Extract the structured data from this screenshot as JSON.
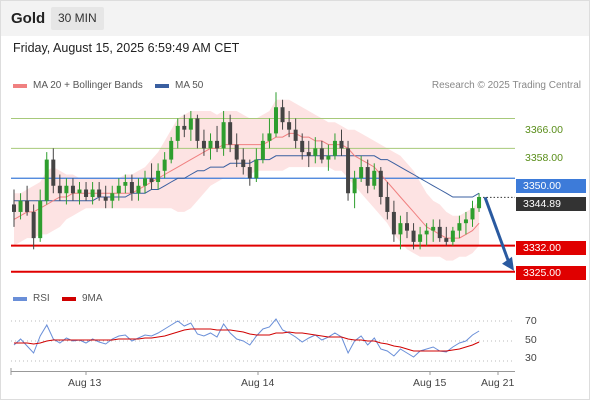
{
  "header": {
    "instrument": "Gold",
    "timeframe": "30 MIN",
    "datetime": "Friday, August 15, 2025 6:59:49 AM CET"
  },
  "legend": {
    "ma20": "MA 20 + Bollinger Bands",
    "ma50": "MA 50",
    "credit": "Research © 2025 Trading Central",
    "rsi": "RSI",
    "rsi_ma": "9MA"
  },
  "colors": {
    "bull": "#2e9e2e",
    "bear": "#444444",
    "ma20": "#f08080",
    "ma50": "#3a5fa0",
    "bands_fill": "#fde3e3",
    "level_red": "#e00000",
    "level_green": "#a7c97a",
    "level_blue": "#3d7bd9",
    "arrow": "#2a5aa0",
    "rsi": "#6a8fd8",
    "rsi_ma": "#d00000"
  },
  "chart_data": [
    {
      "type": "candlestick",
      "title": "Gold",
      "x_ticks": [
        "Aug 13",
        "Aug 14",
        "Aug 15",
        "Aug 21"
      ],
      "ylim": [
        3322,
        3372
      ],
      "levels": [
        {
          "value": 3366.0,
          "label": "3366.00",
          "kind": "resistance"
        },
        {
          "value": 3358.0,
          "label": "3358.00",
          "kind": "resistance"
        },
        {
          "value": 3350.0,
          "label": "3350.00",
          "kind": "pivot"
        },
        {
          "value": 3332.0,
          "label": "3332.00",
          "kind": "support"
        },
        {
          "value": 3325.0,
          "label": "3325.00",
          "kind": "support"
        }
      ],
      "current_price": 3344.89,
      "current_price_label": "3344.89",
      "forecast_target": 3325.0,
      "ohlc": [
        [
          3343,
          3347,
          3337,
          3341
        ],
        [
          3341,
          3346,
          3339,
          3344
        ],
        [
          3344,
          3348,
          3340,
          3341
        ],
        [
          3341,
          3343,
          3331,
          3334
        ],
        [
          3334,
          3347,
          3333,
          3344
        ],
        [
          3344,
          3357,
          3343,
          3355
        ],
        [
          3355,
          3358,
          3346,
          3348
        ],
        [
          3348,
          3351,
          3344,
          3346
        ],
        [
          3346,
          3350,
          3343,
          3348
        ],
        [
          3348,
          3350,
          3344,
          3346
        ],
        [
          3346,
          3349,
          3343,
          3347
        ],
        [
          3347,
          3349,
          3344,
          3345
        ],
        [
          3345,
          3349,
          3343,
          3347
        ],
        [
          3347,
          3349,
          3344,
          3345
        ],
        [
          3345,
          3348,
          3342,
          3344
        ],
        [
          3344,
          3348,
          3342,
          3346
        ],
        [
          3346,
          3350,
          3344,
          3348
        ],
        [
          3348,
          3351,
          3346,
          3349
        ],
        [
          3349,
          3351,
          3344,
          3346
        ],
        [
          3346,
          3350,
          3344,
          3348
        ],
        [
          3348,
          3352,
          3346,
          3350
        ],
        [
          3350,
          3354,
          3347,
          3349
        ],
        [
          3349,
          3354,
          3347,
          3352
        ],
        [
          3352,
          3357,
          3350,
          3355
        ],
        [
          3355,
          3361,
          3354,
          3360
        ],
        [
          3360,
          3366,
          3358,
          3364
        ],
        [
          3364,
          3367,
          3361,
          3363
        ],
        [
          3363,
          3368,
          3360,
          3366
        ],
        [
          3366,
          3367,
          3358,
          3360
        ],
        [
          3360,
          3363,
          3356,
          3358
        ],
        [
          3358,
          3362,
          3355,
          3360
        ],
        [
          3360,
          3364,
          3357,
          3358
        ],
        [
          3358,
          3368,
          3356,
          3365
        ],
        [
          3365,
          3367,
          3357,
          3359
        ],
        [
          3359,
          3362,
          3353,
          3355
        ],
        [
          3355,
          3358,
          3351,
          3353
        ],
        [
          3353,
          3355,
          3348,
          3350
        ],
        [
          3350,
          3358,
          3349,
          3355
        ],
        [
          3355,
          3362,
          3354,
          3360
        ],
        [
          3360,
          3366,
          3358,
          3362
        ],
        [
          3362,
          3373,
          3361,
          3369
        ],
        [
          3369,
          3371,
          3363,
          3365
        ],
        [
          3365,
          3368,
          3361,
          3363
        ],
        [
          3363,
          3366,
          3358,
          3360
        ],
        [
          3360,
          3362,
          3355,
          3357
        ],
        [
          3357,
          3360,
          3353,
          3356
        ],
        [
          3356,
          3361,
          3354,
          3358
        ],
        [
          3358,
          3360,
          3354,
          3355
        ],
        [
          3355,
          3359,
          3352,
          3356
        ],
        [
          3356,
          3362,
          3355,
          3360
        ],
        [
          3360,
          3363,
          3356,
          3358
        ],
        [
          3358,
          3360,
          3344,
          3346
        ],
        [
          3346,
          3352,
          3342,
          3350
        ],
        [
          3350,
          3356,
          3349,
          3353
        ],
        [
          3353,
          3355,
          3346,
          3348
        ],
        [
          3348,
          3354,
          3347,
          3352
        ],
        [
          3352,
          3353,
          3343,
          3345
        ],
        [
          3345,
          3349,
          3339,
          3341
        ],
        [
          3341,
          3344,
          3333,
          3335
        ],
        [
          3335,
          3340,
          3331,
          3338
        ],
        [
          3338,
          3341,
          3334,
          3336
        ],
        [
          3336,
          3338,
          3331,
          3333
        ],
        [
          3333,
          3337,
          3331,
          3335
        ],
        [
          3335,
          3338,
          3332,
          3336
        ],
        [
          3336,
          3339,
          3333,
          3337
        ],
        [
          3337,
          3339,
          3333,
          3334
        ],
        [
          3334,
          3337,
          3332,
          3333
        ],
        [
          3333,
          3337,
          3332,
          3336
        ],
        [
          3336,
          3340,
          3334,
          3338
        ],
        [
          3338,
          3341,
          3335,
          3339
        ],
        [
          3339,
          3344,
          3337,
          3342
        ],
        [
          3342,
          3346,
          3341,
          3345
        ]
      ],
      "ma20": [
        3339,
        3340,
        3341,
        3341,
        3342,
        3343,
        3344,
        3345,
        3345,
        3346,
        3346,
        3346,
        3346,
        3346,
        3346,
        3346,
        3346,
        3346,
        3346,
        3347,
        3348,
        3349,
        3350,
        3351,
        3352,
        3353,
        3354,
        3355,
        3356,
        3357,
        3358,
        3358,
        3359,
        3359,
        3359,
        3359,
        3359,
        3359,
        3359,
        3360,
        3361,
        3361,
        3362,
        3362,
        3361,
        3361,
        3360,
        3360,
        3359,
        3359,
        3359,
        3358,
        3356,
        3355,
        3354,
        3353,
        3351,
        3349,
        3347,
        3345,
        3343,
        3341,
        3339,
        3337,
        3336,
        3335,
        3334,
        3334,
        3334,
        3335,
        3336,
        3338
      ],
      "ma50": [
        3344,
        3344,
        3344,
        3344,
        3344,
        3344,
        3344,
        3344,
        3344,
        3344,
        3344,
        3344,
        3344,
        3345,
        3345,
        3345,
        3345,
        3345,
        3346,
        3346,
        3346,
        3347,
        3347,
        3348,
        3349,
        3350,
        3350,
        3351,
        3352,
        3352,
        3353,
        3353,
        3353,
        3354,
        3354,
        3354,
        3354,
        3355,
        3355,
        3355,
        3356,
        3356,
        3356,
        3356,
        3356,
        3356,
        3356,
        3356,
        3356,
        3356,
        3356,
        3356,
        3356,
        3356,
        3356,
        3356,
        3355,
        3355,
        3354,
        3353,
        3352,
        3351,
        3350,
        3349,
        3348,
        3347,
        3346,
        3345,
        3345,
        3345,
        3345,
        3346
      ],
      "bb_upper": [
        3346,
        3346,
        3347,
        3348,
        3349,
        3352,
        3353,
        3352,
        3351,
        3351,
        3350,
        3350,
        3350,
        3350,
        3350,
        3350,
        3350,
        3351,
        3351,
        3352,
        3353,
        3355,
        3357,
        3360,
        3363,
        3366,
        3367,
        3368,
        3368,
        3368,
        3368,
        3367,
        3368,
        3368,
        3368,
        3367,
        3366,
        3366,
        3367,
        3368,
        3371,
        3371,
        3371,
        3370,
        3369,
        3368,
        3367,
        3366,
        3365,
        3365,
        3364,
        3363,
        3363,
        3362,
        3361,
        3360,
        3359,
        3358,
        3357,
        3356,
        3354,
        3352,
        3349,
        3346,
        3344,
        3343,
        3341,
        3340,
        3340,
        3341,
        3342,
        3344
      ],
      "bb_lower": [
        3332,
        3333,
        3334,
        3334,
        3335,
        3335,
        3336,
        3337,
        3339,
        3340,
        3341,
        3342,
        3342,
        3342,
        3342,
        3342,
        3342,
        3342,
        3342,
        3342,
        3342,
        3342,
        3342,
        3342,
        3342,
        3341,
        3341,
        3342,
        3344,
        3346,
        3348,
        3349,
        3350,
        3350,
        3350,
        3350,
        3351,
        3352,
        3352,
        3352,
        3352,
        3352,
        3353,
        3353,
        3353,
        3353,
        3353,
        3353,
        3353,
        3352,
        3352,
        3350,
        3348,
        3346,
        3344,
        3342,
        3340,
        3338,
        3335,
        3333,
        3331,
        3330,
        3329,
        3329,
        3329,
        3329,
        3328,
        3328,
        3329,
        3329,
        3330,
        3332
      ]
    },
    {
      "type": "line",
      "title": "RSI",
      "ylim": [
        20,
        80
      ],
      "y_ticks": [
        70,
        50,
        30
      ],
      "rsi_levels": [
        70,
        50,
        30
      ],
      "rsi": [
        46,
        52,
        45,
        38,
        55,
        66,
        52,
        48,
        53,
        50,
        51,
        48,
        52,
        49,
        47,
        52,
        55,
        56,
        50,
        53,
        56,
        55,
        58,
        62,
        66,
        70,
        65,
        68,
        57,
        55,
        58,
        54,
        67,
        58,
        52,
        50,
        46,
        55,
        62,
        64,
        72,
        61,
        58,
        54,
        49,
        53,
        56,
        51,
        54,
        58,
        54,
        38,
        50,
        55,
        46,
        53,
        42,
        40,
        35,
        42,
        38,
        34,
        40,
        42,
        44,
        40,
        39,
        44,
        48,
        50,
        56,
        60
      ],
      "rsi_ma": [
        48,
        48,
        48,
        47,
        48,
        50,
        51,
        51,
        51,
        51,
        51,
        51,
        51,
        51,
        51,
        51,
        52,
        52,
        52,
        52,
        53,
        53,
        54,
        55,
        57,
        59,
        61,
        62,
        62,
        62,
        62,
        61,
        61,
        61,
        60,
        59,
        57,
        56,
        56,
        56,
        58,
        58,
        59,
        58,
        58,
        57,
        56,
        55,
        54,
        54,
        54,
        52,
        51,
        51,
        50,
        50,
        48,
        47,
        45,
        44,
        42,
        40,
        40,
        40,
        40,
        40,
        40,
        41,
        42,
        44,
        46,
        49
      ]
    }
  ]
}
